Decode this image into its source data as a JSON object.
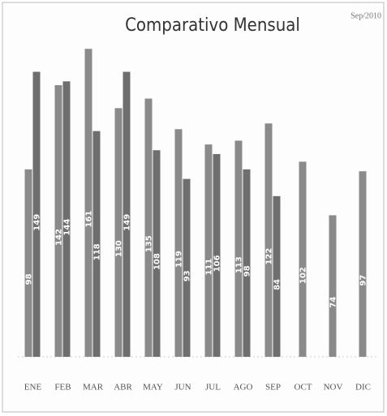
{
  "chart_data": {
    "type": "bar",
    "title": "Comparativo Mensual",
    "annotation": "Sep/2010",
    "categories": [
      "ENE",
      "FEB",
      "MAR",
      "ABR",
      "MAY",
      "JUN",
      "JUL",
      "AGO",
      "SEP",
      "OCT",
      "NOV",
      "DIC"
    ],
    "series": [
      {
        "color": "#8a8a8a",
        "values": [
          98,
          142,
          161,
          130,
          135,
          119,
          111,
          113,
          122,
          102,
          74,
          97
        ]
      },
      {
        "color": "#6e6e6e",
        "values": [
          149,
          144,
          118,
          149,
          108,
          93,
          106,
          98,
          84,
          null,
          null,
          null
        ]
      }
    ],
    "ylim": [
      0,
      170
    ]
  }
}
